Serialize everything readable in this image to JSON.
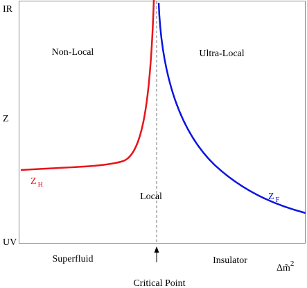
{
  "axis": {
    "top": "IR",
    "middle": "Z",
    "bottom": "UV",
    "x_symbol": "Δm̃",
    "x_superscript": "2"
  },
  "regions": {
    "left": "Non-Local",
    "right": "Ultra-Local",
    "center": "Local"
  },
  "curves": {
    "left": {
      "symbol": "Z",
      "subscript": "H"
    },
    "right": {
      "symbol": "Z",
      "subscript": "F"
    }
  },
  "phases": {
    "left": "Superfluid",
    "right": "Insulator"
  },
  "marker": "Critical Point"
}
